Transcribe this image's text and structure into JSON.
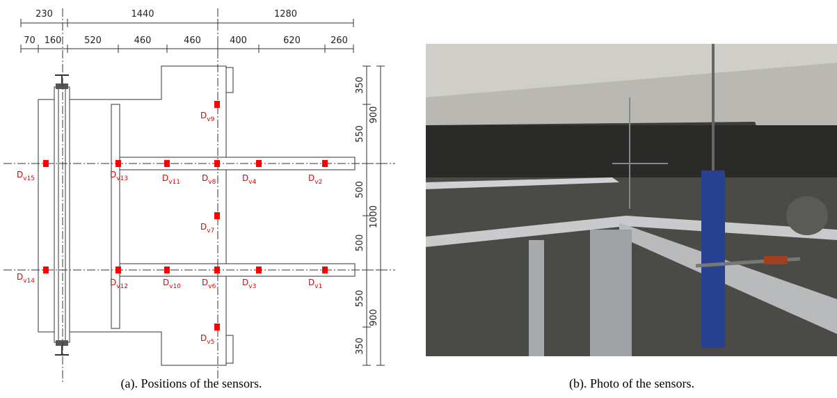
{
  "panel_a": {
    "dimensions_top": [
      "230",
      "1440",
      "1280"
    ],
    "dimensions_second": [
      "70",
      "160",
      "520",
      "460",
      "460",
      "400",
      "620",
      "260"
    ],
    "dimensions_right_inner": [
      "350",
      "550",
      "500",
      "500",
      "550",
      "350"
    ],
    "dimensions_right_outer": [
      "900",
      "1000",
      "900"
    ],
    "sensors": [
      {
        "main": "D",
        "sub": "v15"
      },
      {
        "main": "D",
        "sub": "v13"
      },
      {
        "main": "D",
        "sub": "v11"
      },
      {
        "main": "D",
        "sub": "v8"
      },
      {
        "main": "D",
        "sub": "v4"
      },
      {
        "main": "D",
        "sub": "v2"
      },
      {
        "main": "D",
        "sub": "v9"
      },
      {
        "main": "D",
        "sub": "v7"
      },
      {
        "main": "D",
        "sub": "v14"
      },
      {
        "main": "D",
        "sub": "v12"
      },
      {
        "main": "D",
        "sub": "v10"
      },
      {
        "main": "D",
        "sub": "v6"
      },
      {
        "main": "D",
        "sub": "v3"
      },
      {
        "main": "D",
        "sub": "v1"
      },
      {
        "main": "D",
        "sub": "v5"
      }
    ],
    "caption": "(a). Positions of the sensors."
  },
  "panel_b": {
    "caption": "(b). Photo of the sensors."
  }
}
